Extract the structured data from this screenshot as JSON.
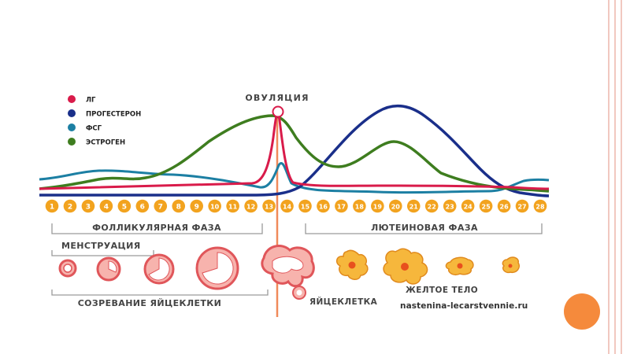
{
  "legend": [
    {
      "label": "ЛГ",
      "color": "#d91b4a"
    },
    {
      "label": "ПРОГЕСТЕРОН",
      "color": "#1a2f8a"
    },
    {
      "label": "ФСГ",
      "color": "#1c7fa3"
    },
    {
      "label": "ЭСТРОГЕН",
      "color": "#3e7d1f"
    }
  ],
  "ovulation_label": "ОВУЛЯЦИЯ",
  "days": [
    "1",
    "2",
    "3",
    "4",
    "5",
    "6",
    "7",
    "8",
    "9",
    "10",
    "11",
    "12",
    "13",
    "14",
    "15",
    "16",
    "17",
    "18",
    "19",
    "20",
    "21",
    "22",
    "23",
    "24",
    "25",
    "26",
    "27",
    "28"
  ],
  "phases": {
    "follicular": "ФОЛЛИКУЛЯРНАЯ ФАЗА",
    "luteal": "ЛЮТЕИНОВАЯ ФАЗА",
    "menstruation": "МЕНСТРУАЦИЯ",
    "maturation": "СОЗРЕВАНИЕ ЯЙЦЕКЛЕТКИ"
  },
  "labels": {
    "egg": "ЯЙЦЕКЛЕТКА",
    "corpus_luteum": "ЖЕЛТОЕ ТЕЛО"
  },
  "watermark": "nastenina-lecarstvennie.ru",
  "colors": {
    "lh": "#d91b4a",
    "progesterone": "#1a2f8a",
    "fsh": "#1c7fa3",
    "estrogen": "#3e7d1f",
    "day_badge": "#f2a31f",
    "day_badge_text": "#ffffff",
    "ovulation_line": "#f08a5a",
    "follicle_fill": "#f7b3ad",
    "follicle_stroke": "#e0565a",
    "corpus_fill": "#f6b73c",
    "corpus_center": "#e8501e",
    "bracket": "#9a9a9a",
    "label_text": "#444444",
    "accent_blob": "#f58a3c",
    "stripe": "#f1c8c0"
  }
}
